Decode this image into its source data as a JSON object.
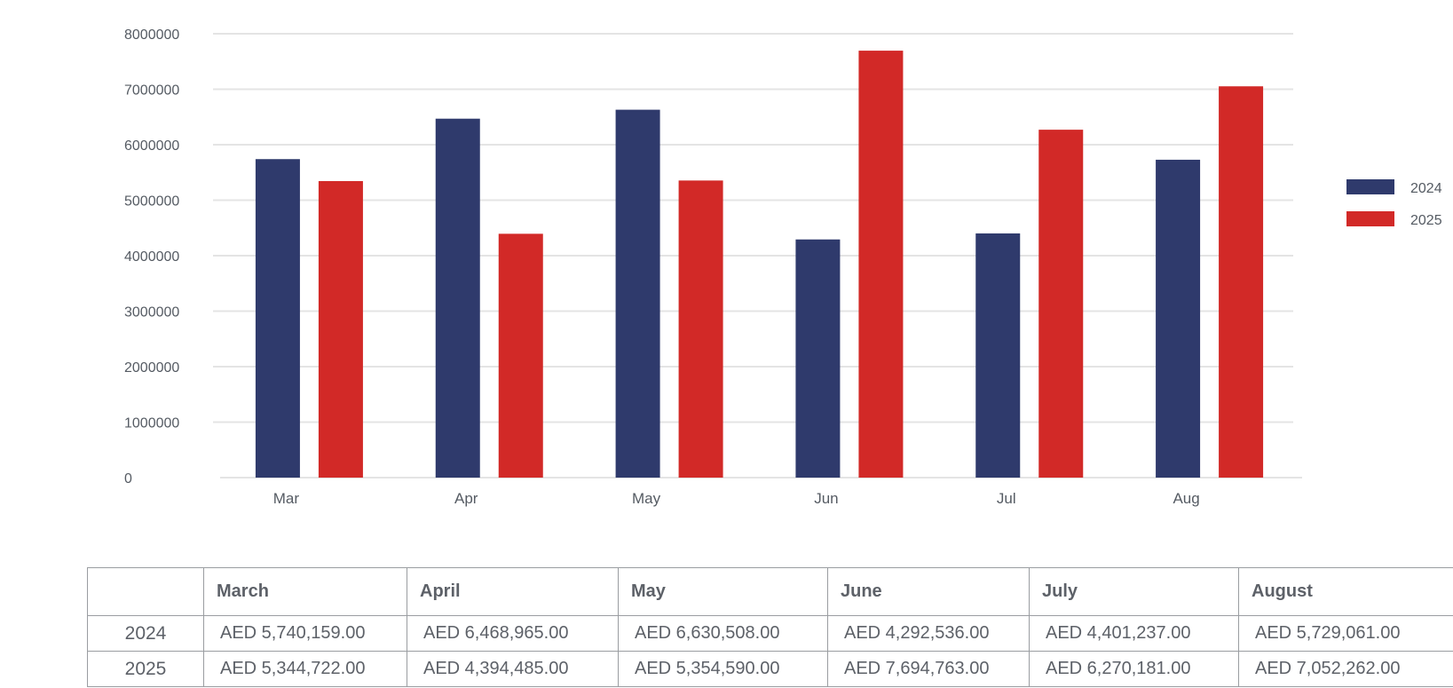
{
  "chart_data": {
    "type": "bar",
    "categories": [
      "Mar",
      "Apr",
      "May",
      "Jun",
      "Jul",
      "Aug"
    ],
    "series": [
      {
        "name": "2024",
        "color": "#2f3a6c",
        "values": [
          5740159,
          6468965,
          6630508,
          4292536,
          4401237,
          5729061
        ]
      },
      {
        "name": "2025",
        "color": "#d22927",
        "values": [
          5344722,
          4394485,
          5354590,
          7694763,
          6270181,
          7052262
        ]
      }
    ],
    "yticks": [
      "0",
      "1000000",
      "2000000",
      "3000000",
      "4000000",
      "5000000",
      "6000000",
      "7000000",
      "8000000"
    ],
    "ylim": [
      0,
      8000000
    ],
    "grid": true,
    "legend_position": "right",
    "title": "",
    "xlabel": "",
    "ylabel": ""
  },
  "table": {
    "headers": [
      "",
      "March",
      "April",
      "May",
      "June",
      "July",
      "August"
    ],
    "rows": [
      {
        "label": "2024",
        "cells": [
          "AED 5,740,159.00",
          "AED 6,468,965.00",
          "AED 6,630,508.00",
          "AED 4,292,536.00",
          "AED 4,401,237.00",
          "AED 5,729,061.00"
        ]
      },
      {
        "label": "2025",
        "cells": [
          "AED 5,344,722.00",
          "AED 4,394,485.00",
          "AED 5,354,590.00",
          "AED 7,694,763.00",
          "AED 6,270,181.00",
          "AED 7,052,262.00"
        ]
      }
    ]
  }
}
